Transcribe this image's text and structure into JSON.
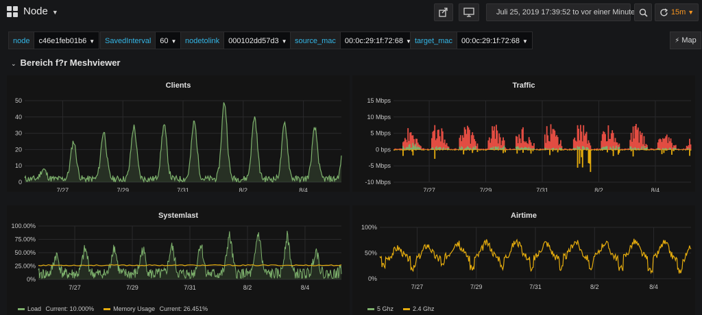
{
  "header": {
    "title": "Node",
    "time_range": "Juli 25, 2019 17:39:52 to vor einer Minute",
    "refresh": "15m"
  },
  "variables": [
    {
      "label": "node",
      "value": "c46e1feb01b6"
    },
    {
      "label": "SavedInterval",
      "value": "60"
    },
    {
      "label": "nodetolink",
      "value": "000102dd57d3"
    },
    {
      "label": "source_mac",
      "value": "00:0c:29:1f:72:68"
    },
    {
      "label": "target_mac",
      "value": "00:0c:29:1f:72:68"
    }
  ],
  "map_button": "Map",
  "row": {
    "title": "Bereich f?r Meshviewer"
  },
  "colors": {
    "green": "#7eb26d",
    "orange": "#e5ac0e",
    "red": "#e24d42",
    "accent_orange": "#f79520",
    "var_label": "#33b5e5"
  },
  "x_ticks": [
    "7/27",
    "7/29",
    "7/31",
    "8/2",
    "8/4"
  ],
  "panels": {
    "clients": {
      "title": "Clients"
    },
    "traffic": {
      "title": "Traffic"
    },
    "systemlast": {
      "title": "Systemlast",
      "legend": [
        {
          "label": "Load",
          "current": "Current: 10.000%"
        },
        {
          "label": "Memory Usage",
          "current": "Current: 26.451%"
        }
      ]
    },
    "airtime": {
      "title": "Airtime",
      "legend": [
        {
          "label": "5 Ghz"
        },
        {
          "label": "2.4 Ghz"
        }
      ]
    }
  },
  "chart_data": [
    {
      "type": "area",
      "title": "Clients",
      "x_ticks": [
        "7/27",
        "7/29",
        "7/31",
        "8/2",
        "8/4"
      ],
      "y_ticks": [
        "0",
        "10",
        "20",
        "30",
        "40",
        "50"
      ],
      "ylim": [
        0,
        50
      ],
      "series": [
        {
          "color": "#7eb26d",
          "daily_peaks": [
            8,
            25,
            31,
            34,
            35,
            37,
            49,
            40,
            36,
            33
          ],
          "baseline": 2
        }
      ]
    },
    {
      "type": "area",
      "title": "Traffic",
      "x_ticks": [
        "7/27",
        "7/29",
        "7/31",
        "8/2",
        "8/4"
      ],
      "y_ticks": [
        "15 Mbps",
        "10 Mbps",
        "5 Mbps",
        "0 bps",
        "-5 Mbps",
        "-10 Mbps"
      ],
      "ylim": [
        -10,
        15
      ],
      "series": [
        {
          "color": "#e24d42",
          "daily_peaks": [
            7,
            9,
            8,
            8,
            7,
            9,
            9,
            8,
            8,
            5
          ]
        },
        {
          "color": "#7eb26d",
          "daily_peaks": [
            7,
            2,
            2,
            2,
            2,
            1,
            2,
            2,
            2,
            1
          ]
        },
        {
          "color": "#e5ac0e",
          "daily_dips": [
            -2,
            -3,
            -2,
            -3,
            -2,
            -3,
            -8,
            -2,
            -4,
            -2
          ]
        }
      ]
    },
    {
      "type": "line",
      "title": "Systemlast",
      "x_ticks": [
        "7/27",
        "7/29",
        "7/31",
        "8/2",
        "8/4"
      ],
      "y_ticks": [
        "0%",
        "25.00%",
        "50.00%",
        "75.00%",
        "100.00%"
      ],
      "ylim": [
        0,
        100
      ],
      "series": [
        {
          "name": "Load",
          "color": "#7eb26d",
          "daily_peaks": [
            45,
            55,
            60,
            55,
            60,
            65,
            80,
            85,
            80,
            55
          ],
          "current": 10.0
        },
        {
          "name": "Memory Usage",
          "color": "#e5ac0e",
          "level": 26.451
        }
      ]
    },
    {
      "type": "line",
      "title": "Airtime",
      "x_ticks": [
        "7/27",
        "7/29",
        "7/31",
        "8/2",
        "8/4"
      ],
      "y_ticks": [
        "0%",
        "50%",
        "100%"
      ],
      "ylim": [
        0,
        100
      ],
      "series": [
        {
          "name": "5 Ghz",
          "color": "#7eb26d",
          "values": []
        },
        {
          "name": "2.4 Ghz",
          "color": "#e5ac0e",
          "daily_peaks": [
            60,
            65,
            70,
            70,
            72,
            70,
            72,
            70,
            72,
            70
          ],
          "daily_lows": [
            20,
            15,
            20,
            15,
            15,
            15,
            15,
            15,
            15,
            10
          ]
        }
      ]
    }
  ]
}
